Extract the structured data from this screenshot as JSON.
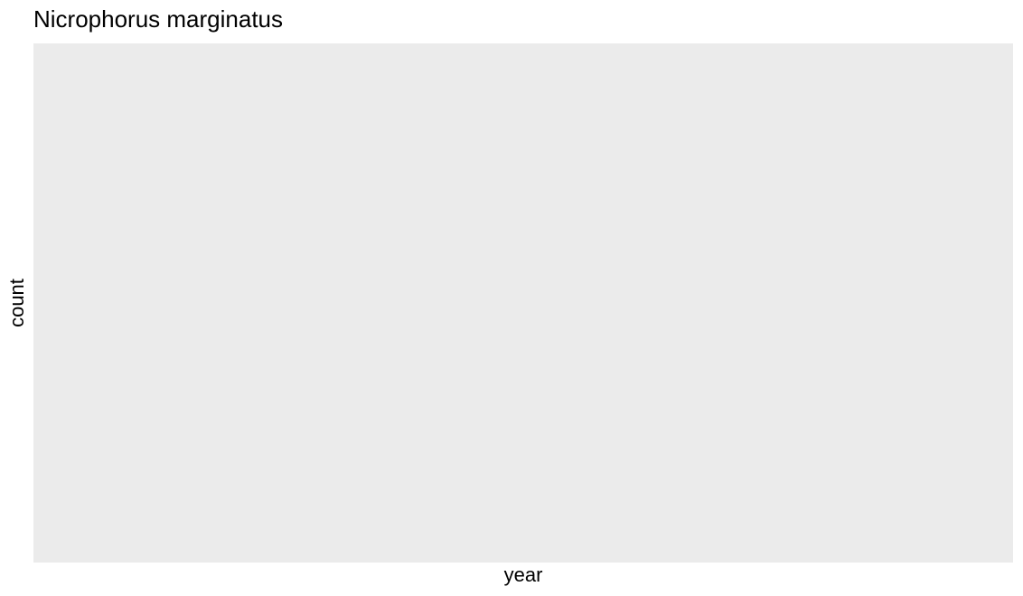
{
  "chart_data": {
    "type": "bar",
    "title": "Nicrophorus marginatus",
    "xlabel": "year",
    "ylabel": "count",
    "categories": [],
    "values": [],
    "grid": false,
    "legend": "none",
    "colors": {
      "panel_background": "#ebebeb",
      "page_background": "#ffffff",
      "text": "#000000"
    }
  }
}
